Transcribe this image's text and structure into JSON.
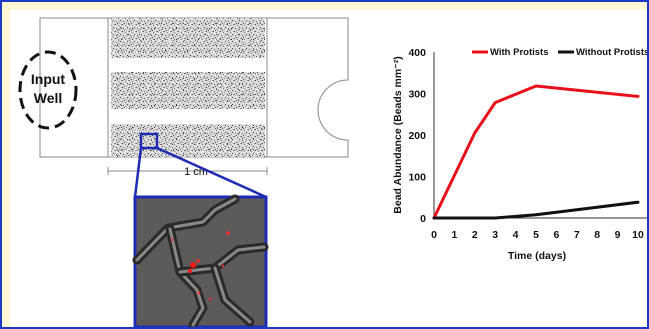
{
  "device": {
    "input_well_line1": "Input",
    "input_well_line2": "Well",
    "scale_label": "1 cm"
  },
  "chart_data": {
    "type": "line",
    "title": "",
    "xlabel": "Time (days)",
    "ylabel": "Bead Abundance (Beads mm⁻²)",
    "xlim": [
      0,
      10
    ],
    "ylim": [
      0,
      400
    ],
    "xticks": [
      "0",
      "1",
      "2",
      "3",
      "4",
      "5",
      "6",
      "7",
      "8",
      "9",
      "10"
    ],
    "yticks": [
      "0",
      "100",
      "200",
      "300",
      "400"
    ],
    "legend_position": "top",
    "grid": false,
    "series": [
      {
        "name": "With Protists",
        "color": "#e8101a",
        "x": [
          0,
          2,
          3,
          5,
          10
        ],
        "y": [
          0,
          205,
          278,
          318,
          293
        ]
      },
      {
        "name": "Without Protists",
        "color": "#111111",
        "x": [
          0,
          3,
          5,
          7,
          10
        ],
        "y": [
          0,
          0,
          8,
          20,
          38
        ]
      }
    ]
  }
}
